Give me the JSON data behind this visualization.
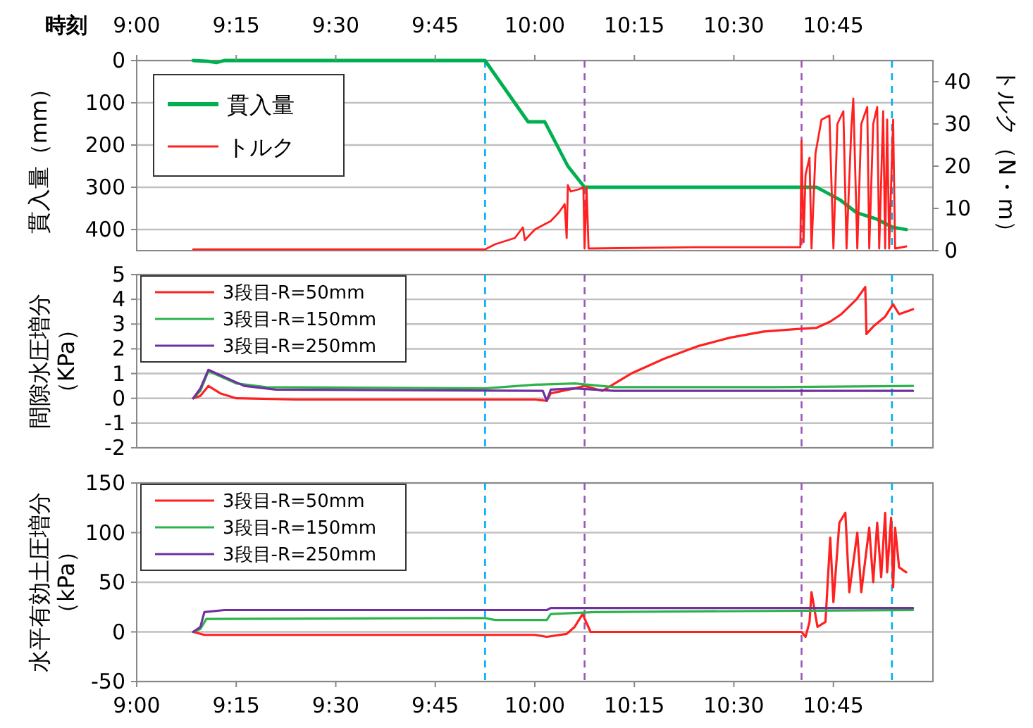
{
  "chart_data": [
    {
      "type": "line",
      "xlabel": "時刻",
      "ylabel": "貫入量（mm）",
      "y2label": "トルク（N・m）",
      "xlim": [
        9,
        11
      ],
      "xticks": [
        {
          "value": 9,
          "label": "9:00"
        },
        {
          "value": 9.25,
          "label": "9:15"
        },
        {
          "value": 9.5,
          "label": "9:30"
        },
        {
          "value": 9.75,
          "label": "9:45"
        },
        {
          "value": 10,
          "label": "10:00"
        },
        {
          "value": 10.25,
          "label": "10:15"
        },
        {
          "value": 10.5,
          "label": "10:30"
        },
        {
          "value": 10.75,
          "label": "10:45"
        }
      ],
      "ylim": [
        450,
        0
      ],
      "yticks": [
        0,
        100,
        200,
        300,
        400
      ],
      "y2lim": [
        0,
        45
      ],
      "y2ticks": [
        0,
        10,
        20,
        30,
        40
      ],
      "grid": "y",
      "legend": "top left",
      "ref_lines": [
        {
          "axis": "x",
          "value": 9.875,
          "color": "#00b0f0",
          "line_style": "dashed"
        },
        {
          "axis": "x",
          "value": 10.125,
          "color": "#9b59b6",
          "line_style": "dashed"
        },
        {
          "axis": "x",
          "value": 10.67,
          "color": "#9b59b6",
          "line_style": "dashed"
        },
        {
          "axis": "x",
          "value": 10.897,
          "color": "#00b0f0",
          "line_style": "dashed"
        }
      ],
      "series": [
        {
          "name": "貫入量",
          "color": "#00b050",
          "x": [
            9.142,
            9.18,
            9.2,
            9.22,
            9.875,
            9.983,
            10.025,
            10.083,
            10.125,
            10.708,
            10.767,
            10.808,
            10.858,
            10.9,
            10.933
          ],
          "values": [
            0,
            2,
            5,
            0,
            0,
            145,
            145,
            250,
            300,
            300,
            330,
            360,
            375,
            395,
            400
          ]
        },
        {
          "name": "トルク",
          "color": "#ff2020",
          "axis": "y2",
          "x": [
            9.142,
            9.875,
            9.9,
            9.95,
            9.97,
            9.975,
            10.0,
            10.04,
            10.06,
            10.075,
            10.08,
            10.083,
            10.09,
            10.11,
            10.122,
            10.125,
            10.13,
            10.135,
            10.4,
            10.667,
            10.67,
            10.675,
            10.68,
            10.69,
            10.695,
            10.705,
            10.72,
            10.74,
            10.75,
            10.76,
            10.775,
            10.783,
            10.795,
            10.8,
            10.81,
            10.82,
            10.835,
            10.84,
            10.85,
            10.86,
            10.865,
            10.875,
            10.88,
            10.885,
            10.89,
            10.9,
            10.905,
            10.933
          ],
          "values": [
            0.3,
            0.3,
            1.5,
            3,
            5.5,
            2.5,
            5,
            7,
            9,
            11,
            3,
            15.5,
            14,
            14.5,
            15,
            0.5,
            15,
            0.5,
            0.8,
            0.8,
            26,
            2,
            18,
            22,
            0.5,
            23,
            31,
            32,
            0.5,
            30,
            33,
            0.5,
            29,
            36,
            0.5,
            30,
            34,
            0.5,
            30,
            34,
            0.5,
            33,
            0.5,
            31,
            0.5,
            31,
            0.5,
            1
          ]
        }
      ]
    },
    {
      "type": "line",
      "ylabel": "間隙水圧増分（KPa）",
      "xlim": [
        9,
        11
      ],
      "ylim": [
        -2,
        5
      ],
      "yticks": [
        -2,
        -1,
        0,
        1,
        2,
        3,
        4,
        5
      ],
      "tick_labels": "y",
      "grid": "y",
      "legend": "top left",
      "ref_lines": [
        {
          "axis": "x",
          "value": 9.875,
          "color": "#00b0f0",
          "line_style": "dashed"
        },
        {
          "axis": "x",
          "value": 10.125,
          "color": "#9b59b6",
          "line_style": "dashed"
        },
        {
          "axis": "x",
          "value": 10.67,
          "color": "#9b59b6",
          "line_style": "dashed"
        },
        {
          "axis": "x",
          "value": 10.897,
          "color": "#00b0f0",
          "line_style": "dashed"
        }
      ],
      "series": [
        {
          "name": "3段目-R=50mm",
          "color": "#ff2020",
          "x": [
            9.142,
            9.16,
            9.18,
            9.21,
            9.25,
            9.4,
            10.0,
            10.03,
            10.04,
            10.07,
            10.1,
            10.125,
            10.17,
            10.242,
            10.325,
            10.408,
            10.49,
            10.575,
            10.658,
            10.708,
            10.742,
            10.77,
            10.808,
            10.83,
            10.833,
            10.85,
            10.88,
            10.9,
            10.915,
            10.95
          ],
          "values": [
            0,
            0.1,
            0.5,
            0.2,
            0,
            -0.05,
            -0.05,
            -0.1,
            0.2,
            0.3,
            0.4,
            0.5,
            0.3,
            1.0,
            1.6,
            2.1,
            2.45,
            2.7,
            2.8,
            2.85,
            3.1,
            3.4,
            4.0,
            4.5,
            2.6,
            2.9,
            3.3,
            3.8,
            3.4,
            3.6
          ]
        },
        {
          "name": "3段目-R=150mm",
          "color": "#2db34a",
          "x": [
            9.142,
            9.16,
            9.18,
            9.25,
            9.325,
            9.875,
            10.0,
            10.1,
            10.2,
            10.6,
            10.95
          ],
          "values": [
            0,
            0.3,
            1.1,
            0.6,
            0.45,
            0.4,
            0.55,
            0.6,
            0.45,
            0.45,
            0.5
          ]
        },
        {
          "name": "3段目-R=250mm",
          "color": "#7030a0",
          "x": [
            9.142,
            9.16,
            9.18,
            9.27,
            9.35,
            10.02,
            10.03,
            10.04,
            10.1,
            10.2,
            10.95
          ],
          "values": [
            0,
            0.4,
            1.15,
            0.5,
            0.35,
            0.3,
            -0.1,
            0.35,
            0.4,
            0.3,
            0.3
          ]
        }
      ]
    },
    {
      "type": "line",
      "ylabel": "水平有効土圧増分（kPa）",
      "xlim": [
        9,
        11
      ],
      "xticks": [
        {
          "value": 9,
          "label": "9:00"
        },
        {
          "value": 9.25,
          "label": "9:15"
        },
        {
          "value": 9.5,
          "label": "9:30"
        },
        {
          "value": 9.75,
          "label": "9:45"
        },
        {
          "value": 10,
          "label": "10:00"
        },
        {
          "value": 10.25,
          "label": "10:15"
        },
        {
          "value": 10.5,
          "label": "10:30"
        },
        {
          "value": 10.75,
          "label": "10:45"
        }
      ],
      "ylim": [
        -50,
        150
      ],
      "yticks": [
        -50,
        0,
        50,
        100,
        150
      ],
      "grid": "y",
      "legend": "top left",
      "ref_lines": [
        {
          "axis": "x",
          "value": 9.875,
          "color": "#00b0f0",
          "line_style": "dashed"
        },
        {
          "axis": "x",
          "value": 10.125,
          "color": "#9b59b6",
          "line_style": "dashed"
        },
        {
          "axis": "x",
          "value": 10.67,
          "color": "#9b59b6",
          "line_style": "dashed"
        },
        {
          "axis": "x",
          "value": 10.897,
          "color": "#00b0f0",
          "line_style": "dashed"
        }
      ],
      "series": [
        {
          "name": "3段目-R=50mm",
          "color": "#ff2020",
          "x": [
            9.142,
            9.17,
            10.0,
            10.03,
            10.08,
            10.1,
            10.12,
            10.14,
            10.67,
            10.68,
            10.69,
            10.695,
            10.71,
            10.73,
            10.742,
            10.75,
            10.765,
            10.78,
            10.79,
            10.81,
            10.82,
            10.84,
            10.85,
            10.86,
            10.87,
            10.88,
            10.885,
            10.895,
            10.9,
            10.905,
            10.915,
            10.933
          ],
          "values": [
            0,
            -3,
            -3,
            -5,
            -2,
            5,
            18,
            0,
            0,
            -5,
            10,
            40,
            5,
            10,
            95,
            30,
            110,
            120,
            40,
            100,
            40,
            105,
            50,
            110,
            55,
            120,
            60,
            115,
            45,
            105,
            65,
            60
          ]
        },
        {
          "name": "3段目-R=150mm",
          "color": "#2db34a",
          "x": [
            9.142,
            9.16,
            9.175,
            9.875,
            9.9,
            10.03,
            10.04,
            10.15,
            10.95
          ],
          "values": [
            0,
            3,
            13,
            14,
            12,
            12,
            18,
            20,
            22
          ]
        },
        {
          "name": "3段目-R=250mm",
          "color": "#7030a0",
          "x": [
            9.142,
            9.16,
            9.17,
            9.22,
            10.03,
            10.04,
            10.95
          ],
          "values": [
            0,
            5,
            20,
            22,
            22,
            24,
            24
          ]
        }
      ]
    }
  ]
}
